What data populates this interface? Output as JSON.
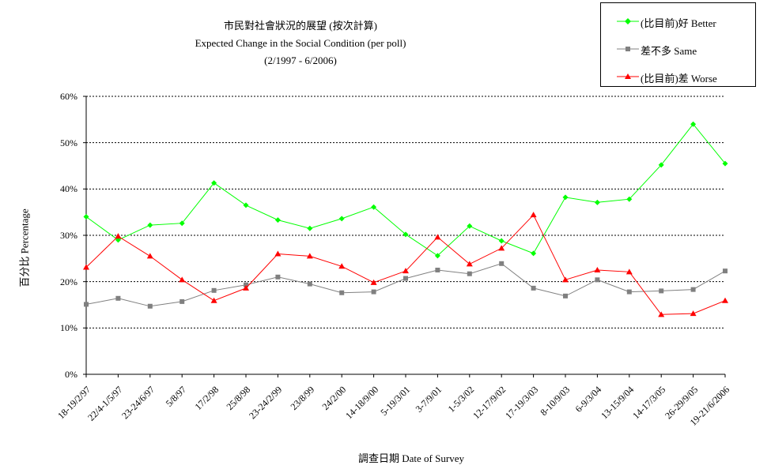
{
  "title": {
    "line1": "市民對社會狀況的展望 (按次計算)",
    "line2": "Expected Change in the Social Condition (per poll)",
    "line3": "(2/1997 - 6/2006)"
  },
  "legend": {
    "better": "(比目前)好 Better",
    "same": "差不多 Same",
    "worse": "(比目前)差 Worse"
  },
  "chart_data": {
    "type": "line",
    "xlabel": "調查日期 Date of Survey",
    "ylabel": "百分比 Percentage",
    "ylim": [
      0,
      60
    ],
    "yticks": [
      "0%",
      "10%",
      "20%",
      "30%",
      "40%",
      "50%",
      "60%"
    ],
    "grid": "horizontal dotted",
    "legend_position": "top-right",
    "categories": [
      "18-19/2/97",
      "22/4-1/5/97",
      "23-24/6/97",
      "5/8/97",
      "17/2/98",
      "25/8/98",
      "23-24/2/99",
      "23/8/99",
      "24/2/00",
      "14-18/9/00",
      "5-19/3/01",
      "3-7/9/01",
      "1-5/3/02",
      "12-17/9/02",
      "17-19/3/03",
      "8-10/9/03",
      "6-9/3/04",
      "13-15/9/04",
      "14-17/3/05",
      "26-29/9/05",
      "19-21/6/2006"
    ],
    "series": [
      {
        "name": "(比目前)好 Better",
        "color": "#00ff00",
        "marker": "diamond",
        "values": [
          34.0,
          29.0,
          32.2,
          32.6,
          41.3,
          36.5,
          33.3,
          31.5,
          33.6,
          36.1,
          30.2,
          25.6,
          32.0,
          28.8,
          26.1,
          38.2,
          37.1,
          37.8,
          45.2,
          54.0,
          45.5
        ]
      },
      {
        "name": "差不多 Same",
        "color": "#808080",
        "marker": "square",
        "values": [
          15.1,
          16.4,
          14.7,
          15.7,
          18.1,
          19.3,
          21.0,
          19.5,
          17.6,
          17.8,
          20.7,
          22.5,
          21.7,
          23.9,
          18.6,
          16.9,
          20.4,
          17.8,
          18.0,
          18.3,
          22.3
        ]
      },
      {
        "name": "(比目前)差 Worse",
        "color": "#ff0000",
        "marker": "triangle",
        "values": [
          23.1,
          29.8,
          25.5,
          20.4,
          15.9,
          18.6,
          26.0,
          25.5,
          23.3,
          19.8,
          22.3,
          29.6,
          23.8,
          27.2,
          34.4,
          20.4,
          22.5,
          22.1,
          12.9,
          13.1,
          15.9
        ]
      }
    ]
  }
}
